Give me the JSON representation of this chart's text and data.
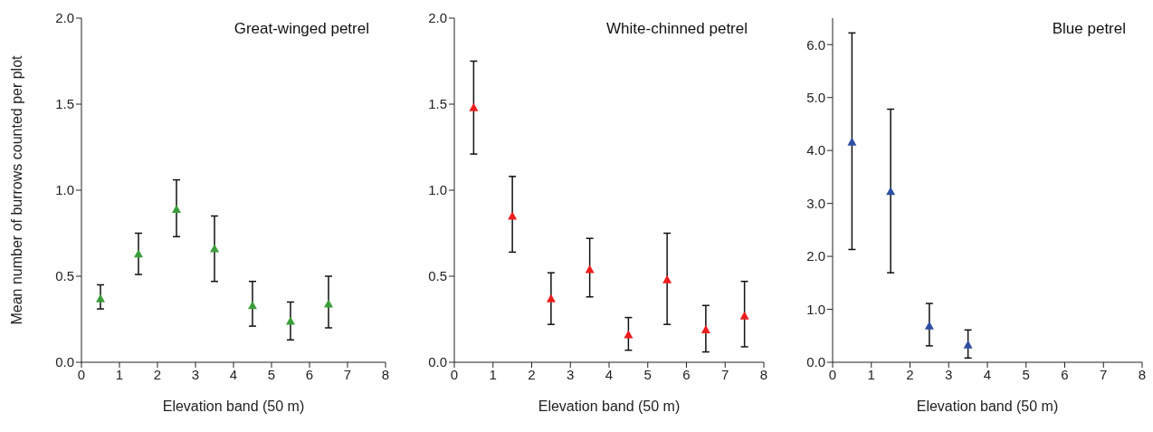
{
  "chart_data": [
    {
      "type": "scatter",
      "title": "Great-winged petrel",
      "xlabel": "Elevation band (50 m)",
      "ylabel": "Mean number of burrows counted per plot",
      "marker": "triangle",
      "xlim": [
        0,
        8
      ],
      "xticks": [
        0,
        1,
        2,
        3,
        4,
        5,
        6,
        7,
        8
      ],
      "ylim": [
        0,
        2
      ],
      "yticks": [
        {
          "value": 0,
          "label": "0.0"
        },
        {
          "value": 0.5,
          "label": "0.5"
        },
        {
          "value": 1,
          "label": "1.0"
        },
        {
          "value": 1.5,
          "label": "1.5"
        },
        {
          "value": 2,
          "label": "2.0"
        }
      ],
      "x": [
        0.5,
        1.5,
        2.5,
        3.5,
        4.5,
        5.5,
        6.5
      ],
      "series": [
        {
          "color": "#3a9e3a",
          "values": [
            0.37,
            0.63,
            0.89,
            0.66,
            0.33,
            0.24,
            0.34
          ],
          "errors": [
            [
              0.31,
              0.45
            ],
            [
              0.51,
              0.75
            ],
            [
              0.73,
              1.06
            ],
            [
              0.47,
              0.85
            ],
            [
              0.21,
              0.47
            ],
            [
              0.13,
              0.35
            ],
            [
              0.2,
              0.5
            ]
          ]
        }
      ]
    },
    {
      "type": "scatter",
      "title": "White-chinned petrel",
      "xlabel": "Elevation band (50 m)",
      "marker": "triangle",
      "xlim": [
        0,
        8
      ],
      "xticks": [
        0,
        1,
        2,
        3,
        4,
        5,
        6,
        7,
        8
      ],
      "ylim": [
        0,
        2
      ],
      "yticks": [
        {
          "value": 0,
          "label": "0.0"
        },
        {
          "value": 0.5,
          "label": "0.5"
        },
        {
          "value": 1,
          "label": "1.0"
        },
        {
          "value": 1.5,
          "label": "1.5"
        },
        {
          "value": 2,
          "label": "2.0"
        }
      ],
      "x": [
        0.5,
        1.5,
        2.5,
        3.5,
        4.5,
        5.5,
        6.5,
        7.5
      ],
      "series": [
        {
          "color": "#ee1c1c",
          "values": [
            1.48,
            0.85,
            0.37,
            0.54,
            0.16,
            0.48,
            0.19,
            0.27
          ],
          "errors": [
            [
              1.21,
              1.75
            ],
            [
              0.64,
              1.08
            ],
            [
              0.22,
              0.52
            ],
            [
              0.38,
              0.72
            ],
            [
              0.07,
              0.26
            ],
            [
              0.22,
              0.75
            ],
            [
              0.06,
              0.33
            ],
            [
              0.09,
              0.47
            ]
          ]
        }
      ]
    },
    {
      "type": "scatter",
      "title": "Blue petrel",
      "xlabel": "Elevation band (50 m)",
      "marker": "triangle",
      "xlim": [
        0,
        8
      ],
      "xticks": [
        0,
        1,
        2,
        3,
        4,
        5,
        6,
        7,
        8
      ],
      "ylim": [
        0,
        6.5
      ],
      "yticks": [
        {
          "value": 0,
          "label": "0.0"
        },
        {
          "value": 1,
          "label": "1.0"
        },
        {
          "value": 2,
          "label": "2.0"
        },
        {
          "value": 3,
          "label": "3.0"
        },
        {
          "value": 4,
          "label": "4.0"
        },
        {
          "value": 5,
          "label": "5.0"
        },
        {
          "value": 6,
          "label": "6.0"
        }
      ],
      "x": [
        0.5,
        1.5,
        2.5,
        3.5
      ],
      "series": [
        {
          "color": "#2e4fa3",
          "values": [
            4.16,
            3.23,
            0.69,
            0.33
          ],
          "errors": [
            [
              2.13,
              6.22
            ],
            [
              1.69,
              4.78
            ],
            [
              0.31,
              1.11
            ],
            [
              0.08,
              0.61
            ]
          ]
        }
      ]
    }
  ]
}
